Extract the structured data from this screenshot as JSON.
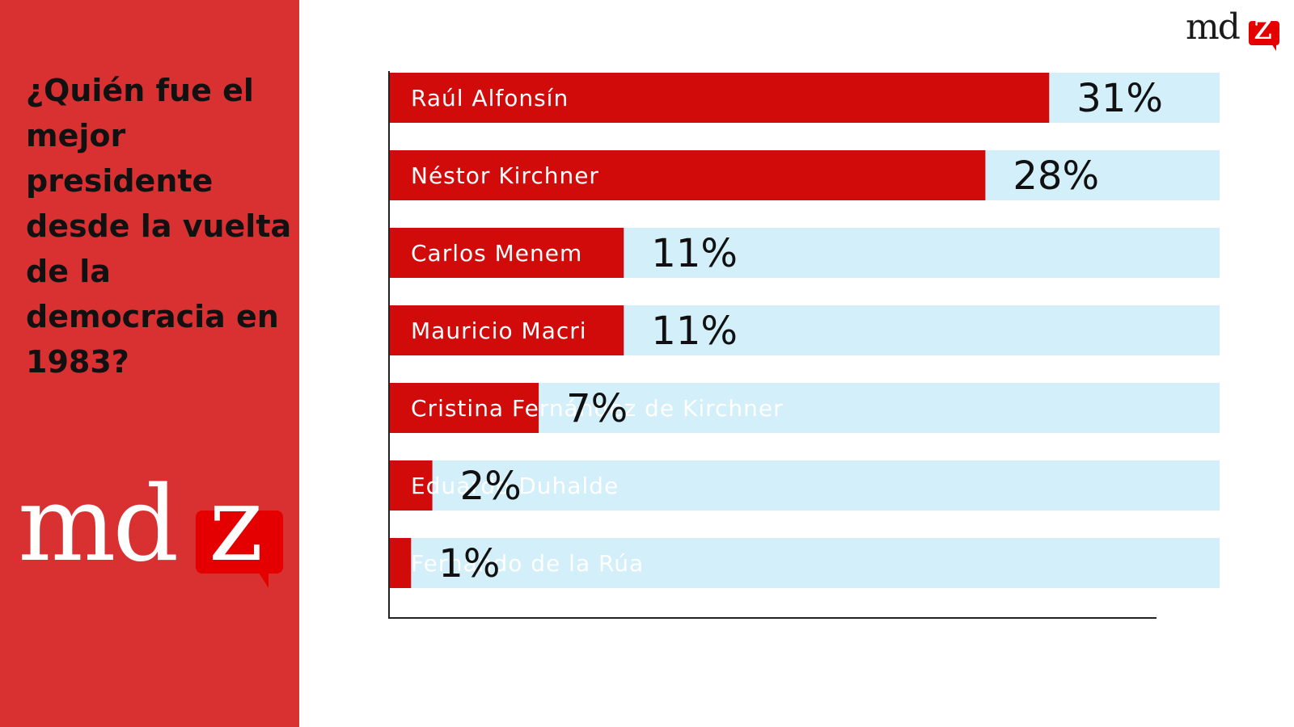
{
  "question": "¿Quién fue el mejor presidente desde la vuelta de la democracia en 1983?",
  "logo": {
    "text_md": "md",
    "text_z": "z"
  },
  "colors": {
    "panel": "#d93131",
    "bar": "#d10a0a",
    "track": "#d2effa",
    "value_text": "#111111"
  },
  "chart_data": {
    "type": "bar",
    "orientation": "horizontal",
    "categories": [
      "Raúl Alfonsín",
      "Néstor Kirchner",
      "Carlos Menem",
      "Mauricio Macri",
      "Cristina Fernández de Kirchner",
      "Eduardo Duhalde",
      "Fernando de la Rúa"
    ],
    "values": [
      31,
      28,
      11,
      11,
      7,
      2,
      1
    ],
    "value_labels": [
      "31%",
      "28%",
      "11%",
      "11%",
      "7%",
      "2%",
      "1%"
    ],
    "unit": "%",
    "title": "",
    "xlabel": "",
    "ylabel": "",
    "grid": false
  }
}
